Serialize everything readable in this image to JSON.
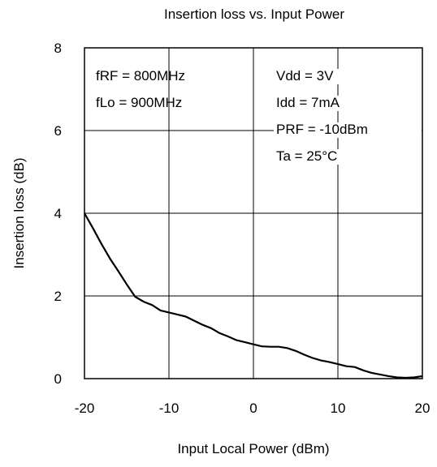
{
  "chart_data": {
    "type": "line",
    "title": "Insertion loss vs. Input Power",
    "xlabel": "Input Local Power (dBm)",
    "ylabel": "Insertion loss (dB)",
    "xlim": [
      -20,
      20
    ],
    "ylim": [
      0,
      8
    ],
    "xticks": [
      -20,
      -10,
      0,
      10,
      20
    ],
    "yticks": [
      0,
      2,
      4,
      6,
      8
    ],
    "grid": true,
    "annotations_left": [
      "fRF = 800MHz",
      "fLo = 900MHz"
    ],
    "annotations_right": [
      "Vdd = 3V",
      "Idd = 7mA",
      "PRF = -10dBm",
      "Ta = 25°C"
    ],
    "series": [
      {
        "color": "#000000",
        "x": [
          -20,
          -19,
          -18,
          -17,
          -16,
          -15,
          -14,
          -13,
          -12,
          -11,
          -10,
          -9,
          -8,
          -7,
          -6,
          -5,
          -4,
          -3,
          -2,
          -1,
          0,
          1,
          2,
          3,
          4,
          5,
          6,
          7,
          8,
          9,
          10,
          11,
          12,
          13,
          14,
          15,
          16,
          17,
          18,
          19,
          20
        ],
        "y": [
          4.0,
          3.64,
          3.26,
          2.91,
          2.6,
          2.28,
          1.98,
          1.86,
          1.78,
          1.65,
          1.6,
          1.55,
          1.5,
          1.4,
          1.3,
          1.22,
          1.1,
          1.02,
          0.93,
          0.88,
          0.83,
          0.78,
          0.77,
          0.77,
          0.74,
          0.67,
          0.58,
          0.5,
          0.44,
          0.4,
          0.35,
          0.3,
          0.28,
          0.2,
          0.14,
          0.1,
          0.06,
          0.03,
          0.02,
          0.03,
          0.06
        ]
      }
    ]
  }
}
